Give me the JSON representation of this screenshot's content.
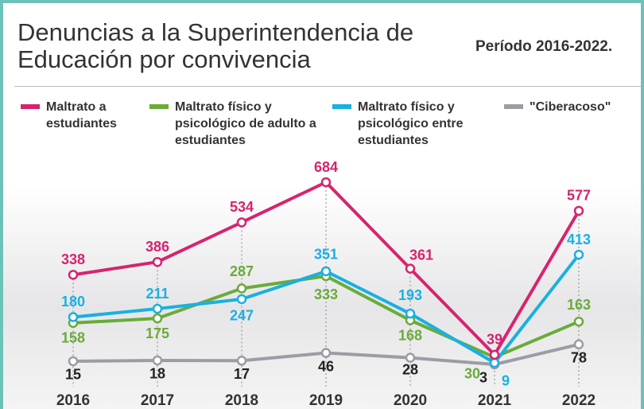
{
  "chart_data": {
    "type": "line",
    "title": "Denuncias a la Superintendencia de Educación por convivencia",
    "subtitle": "Período 2016-2022.",
    "categories": [
      "2016",
      "2017",
      "2018",
      "2019",
      "2020",
      "2021",
      "2022"
    ],
    "series": [
      {
        "name": "Maltrato a estudiantes",
        "color": "#d6246e",
        "values": [
          338,
          386,
          534,
          684,
          361,
          39,
          577
        ]
      },
      {
        "name": "Maltrato físico y psicológico de adulto a estudiantes",
        "color": "#6aab3a",
        "values": [
          158,
          175,
          287,
          333,
          168,
          30,
          163
        ]
      },
      {
        "name": "Maltrato físico y psicológico entre estudiantes",
        "color": "#1ab0e0",
        "values": [
          180,
          211,
          247,
          351,
          193,
          9,
          413
        ]
      },
      {
        "name": "\"Ciberacoso\"",
        "color": "#9c9ca4",
        "values": [
          15,
          18,
          17,
          46,
          28,
          3,
          78
        ]
      }
    ],
    "legend": "top"
  }
}
